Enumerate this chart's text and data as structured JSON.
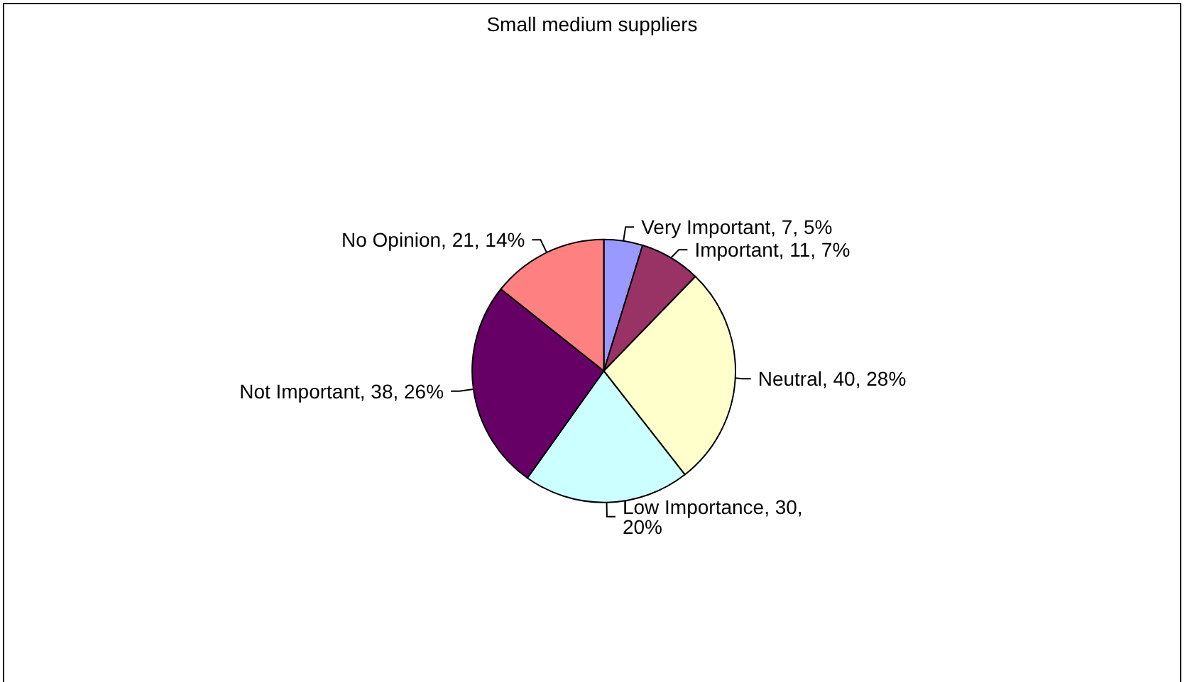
{
  "chart_data": {
    "type": "pie",
    "title": "Small medium suppliers",
    "categories": [
      "Very Important",
      "Important",
      "Neutral",
      "Low Importance",
      "Not Important",
      "No Opinion"
    ],
    "values": [
      7,
      11,
      40,
      30,
      38,
      21
    ],
    "value_labels": [
      "7, 5%",
      "11, 7%",
      "40, 28%",
      "30, 20%",
      "38, 26%",
      "21, 14%"
    ],
    "colors": [
      "#9999ff",
      "#993366",
      "#ffffcc",
      "#ccffff",
      "#660066",
      "#ff8080"
    ],
    "legend": false
  }
}
